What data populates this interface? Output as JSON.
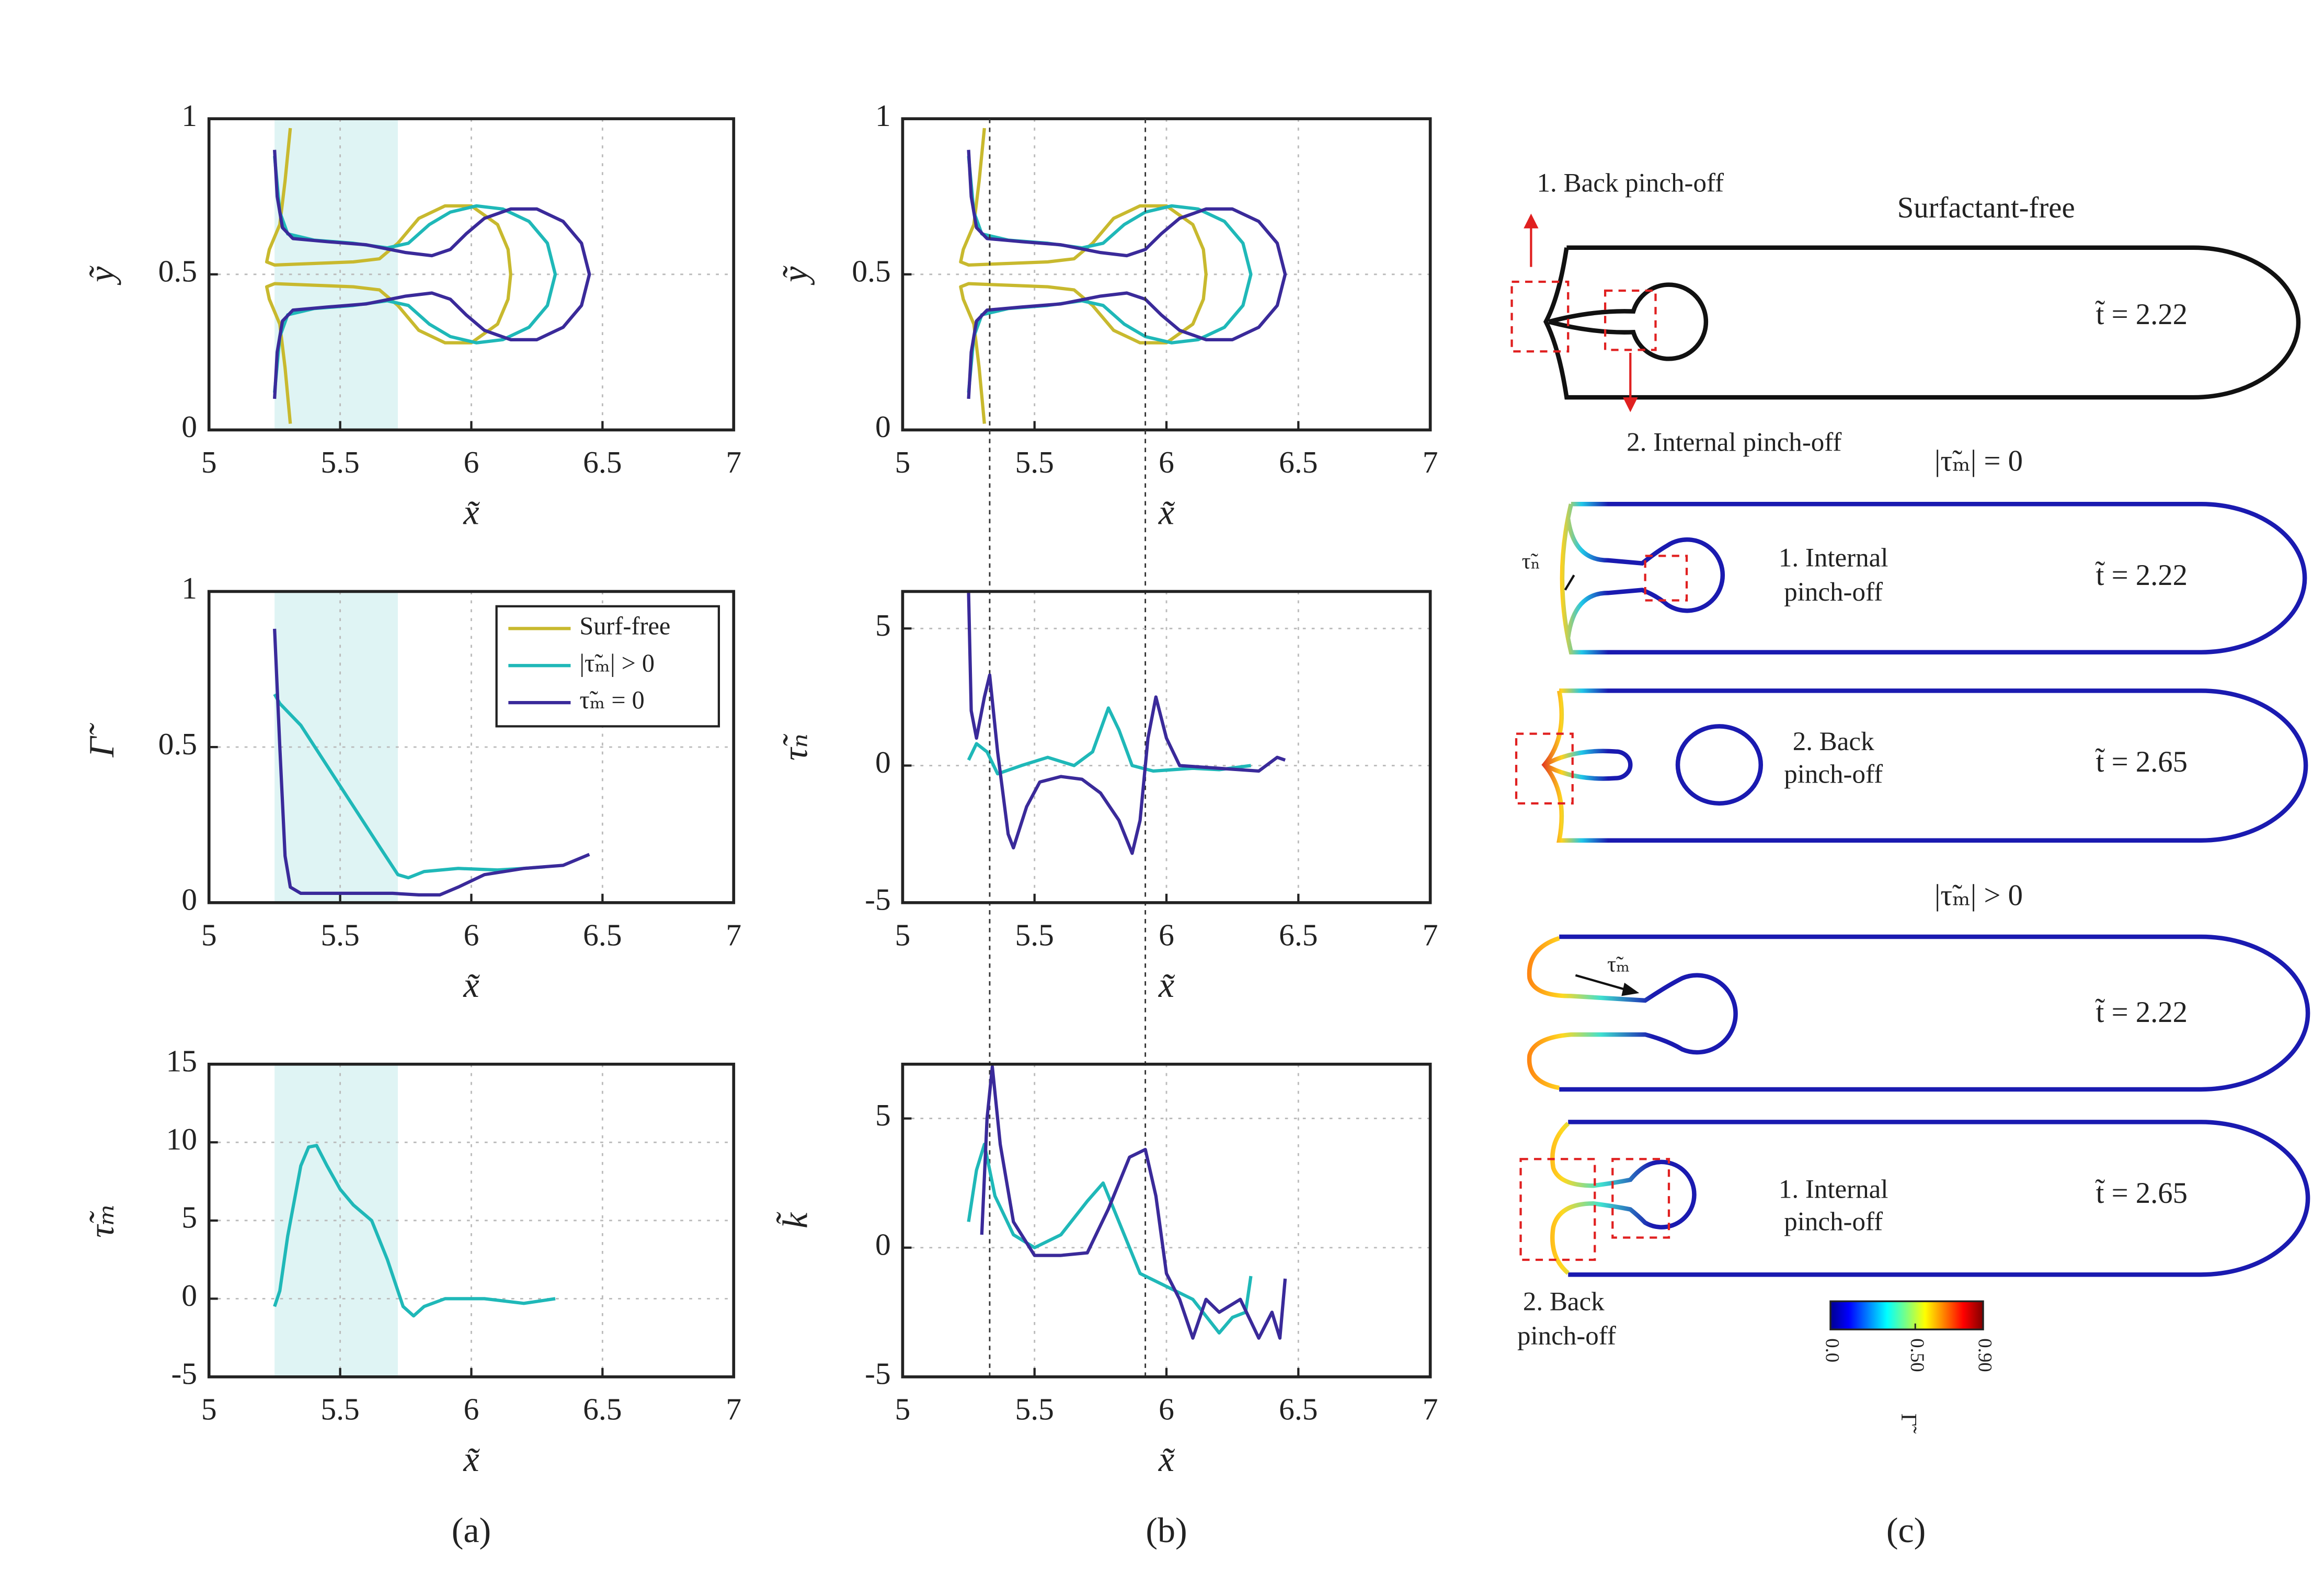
{
  "chart_data": [
    {
      "type": "line",
      "xlabel": "x̃",
      "ylabel": "ỹ",
      "xlim": [
        5,
        7
      ],
      "xticks": [
        5,
        5.5,
        6,
        6.5,
        7
      ],
      "ylim": [
        0,
        1
      ],
      "yticks": [
        0,
        0.5,
        1
      ],
      "grid": true,
      "shade": [
        5.25,
        5.72
      ],
      "series": [
        {
          "color": "#c8b92e",
          "x": [
            5.31,
            5.29,
            5.27,
            5.23,
            5.22,
            5.25,
            5.4,
            5.55,
            5.65,
            5.72,
            5.8,
            5.9,
            6.0,
            6.1,
            6.14,
            6.15,
            6.14,
            6.1,
            6.0,
            5.9,
            5.8,
            5.72,
            5.65,
            5.55,
            5.4,
            5.25,
            5.22,
            5.23,
            5.27,
            5.29,
            5.31
          ],
          "y": [
            0.97,
            0.8,
            0.66,
            0.58,
            0.54,
            0.53,
            0.535,
            0.54,
            0.55,
            0.6,
            0.68,
            0.72,
            0.72,
            0.66,
            0.58,
            0.5,
            0.42,
            0.34,
            0.28,
            0.28,
            0.32,
            0.4,
            0.45,
            0.46,
            0.465,
            0.47,
            0.46,
            0.42,
            0.34,
            0.2,
            0.02
          ]
        },
        {
          "color": "#1fb8b8",
          "x": [
            5.25,
            5.27,
            5.3,
            5.4,
            5.55,
            5.68,
            5.76,
            5.84,
            5.92,
            6.02,
            6.12,
            6.22,
            6.29,
            6.32,
            6.29,
            6.22,
            6.12,
            6.02,
            5.92,
            5.84,
            5.76,
            5.68,
            5.55,
            5.4,
            5.3,
            5.27,
            5.25
          ],
          "y": [
            0.88,
            0.7,
            0.63,
            0.61,
            0.6,
            0.585,
            0.6,
            0.66,
            0.7,
            0.72,
            0.71,
            0.67,
            0.6,
            0.5,
            0.4,
            0.33,
            0.29,
            0.28,
            0.3,
            0.34,
            0.4,
            0.415,
            0.4,
            0.39,
            0.37,
            0.3,
            0.12
          ]
        },
        {
          "color": "#3a2a9a",
          "x": [
            5.25,
            5.26,
            5.28,
            5.32,
            5.45,
            5.6,
            5.75,
            5.85,
            5.92,
            5.98,
            6.05,
            6.15,
            6.25,
            6.35,
            6.42,
            6.45,
            6.42,
            6.35,
            6.25,
            6.15,
            6.05,
            5.98,
            5.92,
            5.85,
            5.75,
            5.6,
            5.45,
            5.32,
            5.28,
            5.26,
            5.25
          ],
          "y": [
            0.9,
            0.75,
            0.65,
            0.615,
            0.605,
            0.595,
            0.57,
            0.56,
            0.58,
            0.63,
            0.68,
            0.71,
            0.71,
            0.67,
            0.6,
            0.5,
            0.4,
            0.33,
            0.29,
            0.29,
            0.32,
            0.37,
            0.42,
            0.44,
            0.43,
            0.405,
            0.395,
            0.385,
            0.35,
            0.25,
            0.1
          ]
        }
      ]
    },
    {
      "type": "line",
      "xlabel": "x̃",
      "ylabel": "Γ̃",
      "xlim": [
        5,
        7
      ],
      "xticks": [
        5,
        5.5,
        6,
        6.5,
        7
      ],
      "ylim": [
        0,
        1
      ],
      "yticks": [
        0,
        0.5,
        1
      ],
      "grid": true,
      "shade": [
        5.25,
        5.72
      ],
      "legend": "upper right",
      "series": [
        {
          "name": "Surf-free",
          "color": "#c8b92e",
          "x": [],
          "y": []
        },
        {
          "name": "|τ̃ₘ| > 0",
          "color": "#1fb8b8",
          "x": [
            5.25,
            5.27,
            5.35,
            5.45,
            5.55,
            5.65,
            5.72,
            5.76,
            5.82,
            5.95,
            6.1,
            6.2,
            6.28
          ],
          "y": [
            0.67,
            0.64,
            0.57,
            0.44,
            0.31,
            0.18,
            0.09,
            0.08,
            0.1,
            0.11,
            0.105,
            0.11,
            0.115
          ]
        },
        {
          "name": "τ̃ₘ = 0",
          "color": "#3a2a9a",
          "x": [
            5.25,
            5.27,
            5.29,
            5.31,
            5.35,
            5.5,
            5.7,
            5.8,
            5.88,
            5.95,
            6.05,
            6.2,
            6.35,
            6.45
          ],
          "y": [
            0.88,
            0.5,
            0.15,
            0.05,
            0.03,
            0.03,
            0.03,
            0.025,
            0.025,
            0.05,
            0.09,
            0.11,
            0.12,
            0.155
          ]
        }
      ]
    },
    {
      "type": "line",
      "xlabel": "x̃",
      "ylabel": "τ̃ₘ",
      "xlim": [
        5,
        7
      ],
      "xticks": [
        5,
        5.5,
        6,
        6.5,
        7
      ],
      "ylim": [
        -5,
        15
      ],
      "yticks": [
        -5,
        0,
        5,
        10,
        15
      ],
      "grid": true,
      "shade": [
        5.25,
        5.72
      ],
      "series": [
        {
          "color": "#1fb8b8",
          "x": [
            5.25,
            5.27,
            5.3,
            5.35,
            5.38,
            5.41,
            5.45,
            5.5,
            5.55,
            5.62,
            5.68,
            5.74,
            5.78,
            5.82,
            5.9,
            6.05,
            6.2,
            6.32
          ],
          "y": [
            -0.5,
            0.5,
            4,
            8.5,
            9.7,
            9.8,
            8.5,
            7,
            6,
            5,
            2.5,
            -0.5,
            -1.1,
            -0.5,
            0,
            0,
            -0.3,
            0
          ]
        }
      ]
    },
    {
      "type": "line",
      "xlabel": "x̃",
      "ylabel": "ỹ",
      "xlim": [
        5,
        7
      ],
      "xticks": [
        5,
        5.5,
        6,
        6.5,
        7
      ],
      "ylim": [
        0,
        1
      ],
      "yticks": [
        0,
        0.5,
        1
      ],
      "grid": true,
      "vlines": [
        5.33,
        5.92
      ],
      "series": [
        {
          "color": "#c8b92e",
          "x": [
            5.31,
            5.29,
            5.27,
            5.23,
            5.22,
            5.25,
            5.4,
            5.55,
            5.65,
            5.72,
            5.8,
            5.9,
            6.0,
            6.1,
            6.14,
            6.15,
            6.14,
            6.1,
            6.0,
            5.9,
            5.8,
            5.72,
            5.65,
            5.55,
            5.4,
            5.25,
            5.22,
            5.23,
            5.27,
            5.29,
            5.31
          ],
          "y": [
            0.97,
            0.8,
            0.66,
            0.58,
            0.54,
            0.53,
            0.535,
            0.54,
            0.55,
            0.6,
            0.68,
            0.72,
            0.72,
            0.66,
            0.58,
            0.5,
            0.42,
            0.34,
            0.28,
            0.28,
            0.32,
            0.4,
            0.45,
            0.46,
            0.465,
            0.47,
            0.46,
            0.42,
            0.34,
            0.2,
            0.02
          ]
        },
        {
          "color": "#1fb8b8",
          "x": [
            5.25,
            5.27,
            5.3,
            5.4,
            5.55,
            5.68,
            5.76,
            5.84,
            5.92,
            6.02,
            6.12,
            6.22,
            6.29,
            6.32,
            6.29,
            6.22,
            6.12,
            6.02,
            5.92,
            5.84,
            5.76,
            5.68,
            5.55,
            5.4,
            5.3,
            5.27,
            5.25
          ],
          "y": [
            0.88,
            0.7,
            0.63,
            0.61,
            0.6,
            0.585,
            0.6,
            0.66,
            0.7,
            0.72,
            0.71,
            0.67,
            0.6,
            0.5,
            0.4,
            0.33,
            0.29,
            0.28,
            0.3,
            0.34,
            0.4,
            0.415,
            0.4,
            0.39,
            0.37,
            0.3,
            0.12
          ]
        },
        {
          "color": "#3a2a9a",
          "x": [
            5.25,
            5.26,
            5.28,
            5.32,
            5.45,
            5.6,
            5.75,
            5.85,
            5.92,
            5.98,
            6.05,
            6.15,
            6.25,
            6.35,
            6.42,
            6.45,
            6.42,
            6.35,
            6.25,
            6.15,
            6.05,
            5.98,
            5.92,
            5.85,
            5.75,
            5.6,
            5.45,
            5.32,
            5.28,
            5.26,
            5.25
          ],
          "y": [
            0.9,
            0.75,
            0.65,
            0.615,
            0.605,
            0.595,
            0.57,
            0.56,
            0.58,
            0.63,
            0.68,
            0.71,
            0.71,
            0.67,
            0.6,
            0.5,
            0.4,
            0.33,
            0.29,
            0.29,
            0.32,
            0.37,
            0.42,
            0.44,
            0.43,
            0.405,
            0.395,
            0.385,
            0.35,
            0.25,
            0.1
          ]
        }
      ]
    },
    {
      "type": "line",
      "xlabel": "x̃",
      "ylabel": "τ̃ₙ",
      "xlim": [
        5,
        7
      ],
      "xticks": [
        5,
        5.5,
        6,
        6.5,
        7
      ],
      "ylim": [
        -5,
        6.35
      ],
      "yticks": [
        -5,
        0,
        5
      ],
      "grid": true,
      "series": [
        {
          "color": "#1fb8b8",
          "x": [
            5.25,
            5.28,
            5.32,
            5.36,
            5.45,
            5.55,
            5.65,
            5.72,
            5.78,
            5.82,
            5.87,
            5.95,
            6.1,
            6.2,
            6.32
          ],
          "y": [
            0.2,
            0.8,
            0.5,
            -0.3,
            0,
            0.3,
            0,
            0.5,
            2.1,
            1.3,
            0,
            -0.2,
            -0.1,
            -0.15,
            0
          ]
        },
        {
          "color": "#3a2a9a",
          "x": [
            5.25,
            5.26,
            5.28,
            5.31,
            5.33,
            5.36,
            5.4,
            5.42,
            5.47,
            5.52,
            5.6,
            5.68,
            5.75,
            5.82,
            5.87,
            5.9,
            5.93,
            5.96,
            6.0,
            6.05,
            6.2,
            6.35,
            6.42,
            6.45
          ],
          "y": [
            6.3,
            2,
            1,
            2.5,
            3.3,
            0.5,
            -2.5,
            -3,
            -1.5,
            -0.6,
            -0.4,
            -0.5,
            -1,
            -2,
            -3.2,
            -2,
            1,
            2.5,
            1,
            0,
            -0.1,
            -0.2,
            0.3,
            0.2
          ]
        }
      ]
    },
    {
      "type": "line",
      "xlabel": "x̃",
      "ylabel": "k̃",
      "xlim": [
        5,
        7
      ],
      "xticks": [
        5,
        5.5,
        6,
        6.5,
        7
      ],
      "ylim": [
        -5,
        7.1
      ],
      "yticks": [
        -5,
        0,
        5
      ],
      "grid": true,
      "series": [
        {
          "color": "#1fb8b8",
          "x": [
            5.25,
            5.28,
            5.31,
            5.35,
            5.42,
            5.5,
            5.6,
            5.7,
            5.76,
            5.82,
            5.9,
            6.0,
            6.1,
            6.2,
            6.25,
            6.3,
            6.32
          ],
          "y": [
            1,
            3,
            4,
            2,
            0.5,
            0,
            0.5,
            1.8,
            2.5,
            1,
            -1,
            -1.5,
            -2,
            -3.3,
            -2.7,
            -2.5,
            -1.1
          ]
        },
        {
          "color": "#3a2a9a",
          "x": [
            5.3,
            5.32,
            5.34,
            5.37,
            5.42,
            5.5,
            5.6,
            5.7,
            5.78,
            5.86,
            5.92,
            5.96,
            6.0,
            6.05,
            6.1,
            6.15,
            6.2,
            6.28,
            6.35,
            6.4,
            6.43,
            6.45
          ],
          "y": [
            0.5,
            5,
            7,
            4,
            1,
            -0.3,
            -0.3,
            -0.2,
            1.5,
            3.5,
            3.8,
            2,
            -1,
            -2,
            -3.5,
            -2,
            -2.5,
            -2,
            -3.5,
            -2.5,
            -3.5,
            -1.2
          ]
        }
      ]
    }
  ],
  "panel_labels": [
    "(a)",
    "(b)",
    "(c)"
  ],
  "diagram": {
    "texts": [
      "1. Back pinch-off",
      "Surfactant-free",
      "t̃ = 2.22",
      "2. Internal pinch-off",
      "|τ̃ₘ| = 0",
      "τ̃ₙ",
      "1. Internal",
      "pinch-off",
      "t̃ = 2.22",
      "2. Back",
      "pinch-off",
      "t̃ = 2.65",
      "|τ̃ₘ| > 0",
      "τ̃ₘ",
      "t̃ = 2.22",
      "1. Internal",
      "pinch-off",
      "t̃ = 2.65",
      "2. Back",
      "pinch-off"
    ],
    "colorbar": {
      "label": "Γ̃",
      "colormap": "jet",
      "lim": [
        0,
        0.9
      ],
      "ticks": [
        {
          "value": 0,
          "label": "0.0"
        },
        {
          "value": 0.5,
          "label": "0.50"
        },
        {
          "value": 0.9,
          "label": "0.90"
        }
      ]
    }
  }
}
